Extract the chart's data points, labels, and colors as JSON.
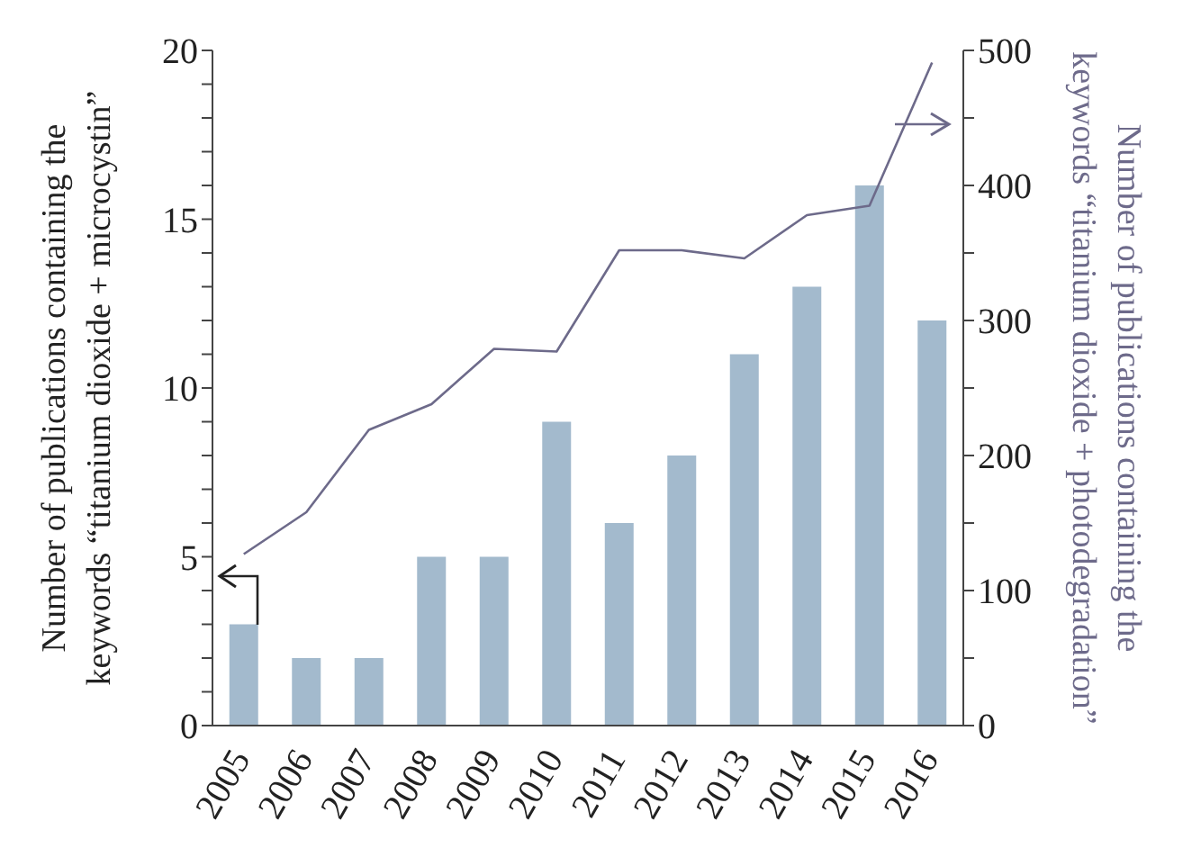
{
  "chart_data": {
    "type": "bar",
    "categories": [
      "2005",
      "2006",
      "2007",
      "2008",
      "2009",
      "2010",
      "2011",
      "2012",
      "2013",
      "2014",
      "2015",
      "2016"
    ],
    "series": [
      {
        "color": "#a3bacd",
        "values": [
          3,
          2,
          2,
          5,
          5,
          9,
          6,
          8,
          11,
          13,
          16,
          12
        ]
      },
      {
        "type": "line",
        "axis": "y2",
        "color": "#6d6a8a",
        "values": [
          127,
          158,
          219,
          238,
          279,
          277,
          352,
          352,
          346,
          378,
          385,
          491
        ]
      }
    ],
    "ylabel": "Number of publications containing the\nkeywords “titanium dioxide + microcystin”",
    "y2label": "Number of publications containing the\nkeywords “titanium dioxide + photodegradation”",
    "ylim": [
      0,
      20
    ],
    "yticks": [
      0,
      {
        "value": 1,
        "label": null
      },
      {
        "value": 2,
        "label": null
      },
      {
        "value": 3,
        "label": null
      },
      {
        "value": 4,
        "label": null
      },
      5,
      {
        "value": 6,
        "label": null
      },
      {
        "value": 7,
        "label": null
      },
      {
        "value": 8,
        "label": null
      },
      {
        "value": 9,
        "label": null
      },
      10,
      {
        "value": 11,
        "label": null
      },
      {
        "value": 12,
        "label": null
      },
      {
        "value": 13,
        "label": null
      },
      {
        "value": 14,
        "label": null
      },
      15,
      {
        "value": 16,
        "label": null
      },
      {
        "value": 17,
        "label": null
      },
      {
        "value": 18,
        "label": null
      },
      {
        "value": 19,
        "label": null
      },
      20
    ],
    "y2lim": [
      0,
      500
    ],
    "y2ticks": [
      0,
      {
        "value": 50,
        "label": null
      },
      100,
      {
        "value": 150,
        "label": null
      },
      200,
      {
        "value": 250,
        "label": null
      },
      300,
      {
        "value": 350,
        "label": null
      },
      400,
      {
        "value": 450,
        "label": null
      },
      500
    ],
    "marker": "none",
    "line_style": "solid"
  }
}
